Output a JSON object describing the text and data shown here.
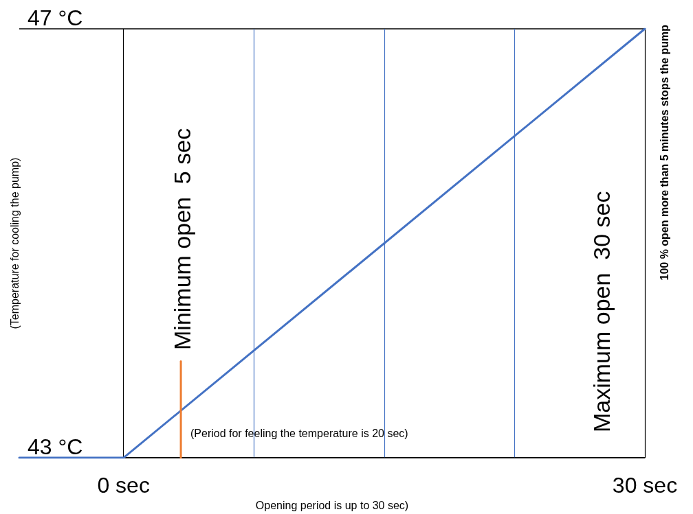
{
  "chart_data": {
    "type": "line",
    "xlabel": "Opening period is up to 30 sec)",
    "ylabel": "(Temperature for cooling the pump)",
    "y2label": "100 % open more than 5 minutes stops the pump",
    "annotations": [
      "Minimum open  5 sec",
      "Maximum open  30 sec",
      "(Period for feeling the temperature is 20 sec)"
    ],
    "series": [
      {
        "color": "#4472c4",
        "x": [
          -6,
          0,
          30
        ],
        "values": [
          43,
          43,
          47
        ]
      },
      {
        "color": "#ed7d31",
        "x": [
          3.3,
          3.3
        ],
        "values": [
          43,
          43.9
        ]
      }
    ],
    "xlim": [
      -6,
      30
    ],
    "xticks": [
      {
        "value": 0,
        "label": "0 sec"
      },
      {
        "value": 7.5,
        "label": null
      },
      {
        "value": 15,
        "label": null
      },
      {
        "value": 22.5,
        "label": null
      },
      {
        "value": 30,
        "label": "30 sec"
      }
    ],
    "ylim": [
      43,
      47
    ],
    "yticks": [
      {
        "value": 43,
        "label": "43 °C"
      },
      {
        "value": 47,
        "label": "47 °C"
      }
    ],
    "grid": true,
    "marker": "none",
    "line_style": "solid"
  }
}
